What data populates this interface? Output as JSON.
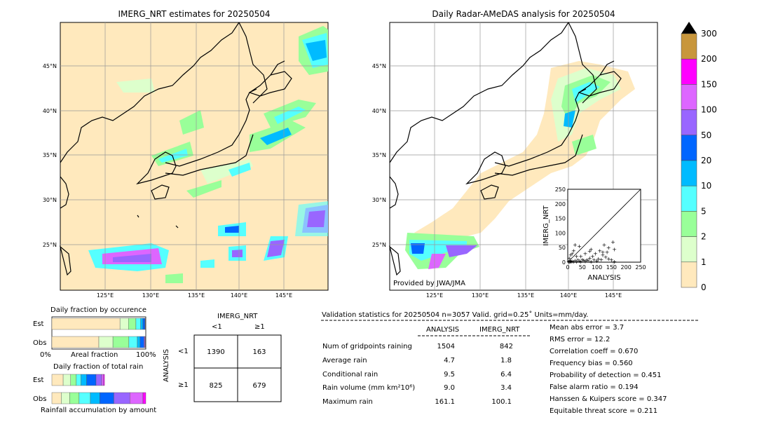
{
  "left_map": {
    "title": "IMERG_NRT estimates for 20250504",
    "lat_labels": [
      "45°N",
      "40°N",
      "35°N",
      "30°N",
      "25°N"
    ],
    "lon_labels": [
      "125°E",
      "130°E",
      "135°E",
      "140°E",
      "145°E"
    ]
  },
  "right_map": {
    "title": "Daily Radar-AMeDAS analysis for 20250504",
    "lat_labels": [
      "45°N",
      "40°N",
      "35°N",
      "30°N",
      "25°N"
    ],
    "lon_labels": [
      "125°E",
      "130°E",
      "135°E",
      "140°E",
      "145°E"
    ],
    "credit": "Provided by JWA/JMA"
  },
  "colorbar": {
    "labels": [
      "300",
      "200",
      "150",
      "100",
      "50",
      "20",
      "10",
      "5",
      "2",
      "1",
      "0"
    ],
    "colors": [
      "#c8963c",
      "#ff00ff",
      "#dd66ff",
      "#9966ff",
      "#0066ff",
      "#00bbff",
      "#55ffff",
      "#99ff99",
      "#ddffcc",
      "#ffe9bd"
    ]
  },
  "chart_data": [
    {
      "type": "scatter",
      "title": "",
      "xlabel": "ANALYSIS",
      "ylabel": "IMERG_NRT",
      "xlim": [
        0,
        250
      ],
      "ylim": [
        0,
        250
      ],
      "ticks": [
        "0",
        "50",
        "100",
        "150",
        "200",
        "250"
      ],
      "x": [
        3,
        5,
        8,
        10,
        12,
        15,
        20,
        25,
        30,
        35,
        40,
        45,
        50,
        55,
        60,
        65,
        70,
        75,
        80,
        85,
        90,
        95,
        100,
        105,
        110,
        115,
        120,
        125,
        130,
        135,
        140,
        150,
        155,
        160,
        10,
        20,
        30,
        40,
        60,
        80,
        100,
        120,
        140,
        160,
        5,
        15,
        25,
        45,
        75
      ],
      "y": [
        2,
        1,
        3,
        5,
        2,
        4,
        3,
        6,
        2,
        8,
        5,
        3,
        10,
        7,
        4,
        9,
        6,
        15,
        3,
        20,
        8,
        30,
        5,
        12,
        40,
        10,
        25,
        60,
        18,
        35,
        50,
        8,
        70,
        45,
        25,
        40,
        20,
        55,
        30,
        45,
        5,
        35,
        12,
        3,
        15,
        30,
        60,
        20,
        38
      ]
    },
    {
      "type": "bar",
      "title": "Daily fraction by occurence",
      "categories": [
        "Est",
        "Obs"
      ],
      "xlabel": "Areal fraction",
      "x_ticks": [
        "0%",
        "100%"
      ],
      "series_colors": [
        "#ffe9bd",
        "#ddffcc",
        "#99ff99",
        "#55ffff",
        "#00bbff",
        "#0066ff",
        "#9966ff",
        "#dd66ff",
        "#ff00ff",
        "#c8963c"
      ],
      "values": [
        [
          0.725,
          0.09,
          0.08,
          0.05,
          0.025,
          0.02,
          0.005,
          0.003,
          0.001,
          0.001
        ],
        [
          0.5,
          0.15,
          0.17,
          0.09,
          0.03,
          0.04,
          0.01,
          0.005,
          0.003,
          0.002
        ]
      ]
    },
    {
      "type": "bar",
      "title": "Daily fraction of total rain",
      "categories": [
        "Est",
        "Obs"
      ],
      "xlabel": "Rainfall accumulation by amount",
      "series_colors": [
        "#ffe9bd",
        "#ddffcc",
        "#99ff99",
        "#55ffff",
        "#00bbff",
        "#0066ff",
        "#9966ff",
        "#dd66ff",
        "#ff00ff",
        "#c8963c"
      ],
      "values": [
        [
          0.12,
          0.08,
          0.06,
          0.05,
          0.06,
          0.1,
          0.06,
          0.02,
          0.01,
          0.0
        ],
        [
          0.1,
          0.09,
          0.1,
          0.12,
          0.1,
          0.15,
          0.17,
          0.14,
          0.03,
          0.0
        ]
      ]
    },
    {
      "type": "table",
      "title": "IMERG_NRT",
      "ylabel": "ANALYSIS",
      "col_labels": [
        "<1",
        "≥1"
      ],
      "row_labels": [
        "<1",
        "≥1"
      ],
      "cells": [
        [
          "1390",
          "163"
        ],
        [
          "825",
          "679"
        ]
      ]
    }
  ],
  "validation": {
    "header": "Validation statistics for 20250504  n=3057 Valid. grid=0.25˚ Units=mm/day.",
    "col_analysis": "ANALYSIS",
    "col_imerg": "IMERG_NRT",
    "rows": [
      {
        "label": "Num of gridpoints raining",
        "analysis": "1504",
        "imerg": "842"
      },
      {
        "label": "Average rain",
        "analysis": "4.7",
        "imerg": "1.8"
      },
      {
        "label": "Conditional rain",
        "analysis": "9.5",
        "imerg": "6.4"
      },
      {
        "label": "Rain volume (mm km²10⁶)",
        "analysis": "9.0",
        "imerg": "3.4"
      },
      {
        "label": "Maximum rain",
        "analysis": "161.1",
        "imerg": "100.1"
      }
    ],
    "scores": [
      "Mean abs error =    3.7",
      "RMS error =   12.2",
      "Correlation coeff =  0.670",
      "Frequency bias =  0.560",
      "Probability of detection =  0.451",
      "False alarm ratio =  0.194",
      "Hanssen & Kuipers score =  0.347",
      "Equitable threat score =  0.211"
    ]
  }
}
